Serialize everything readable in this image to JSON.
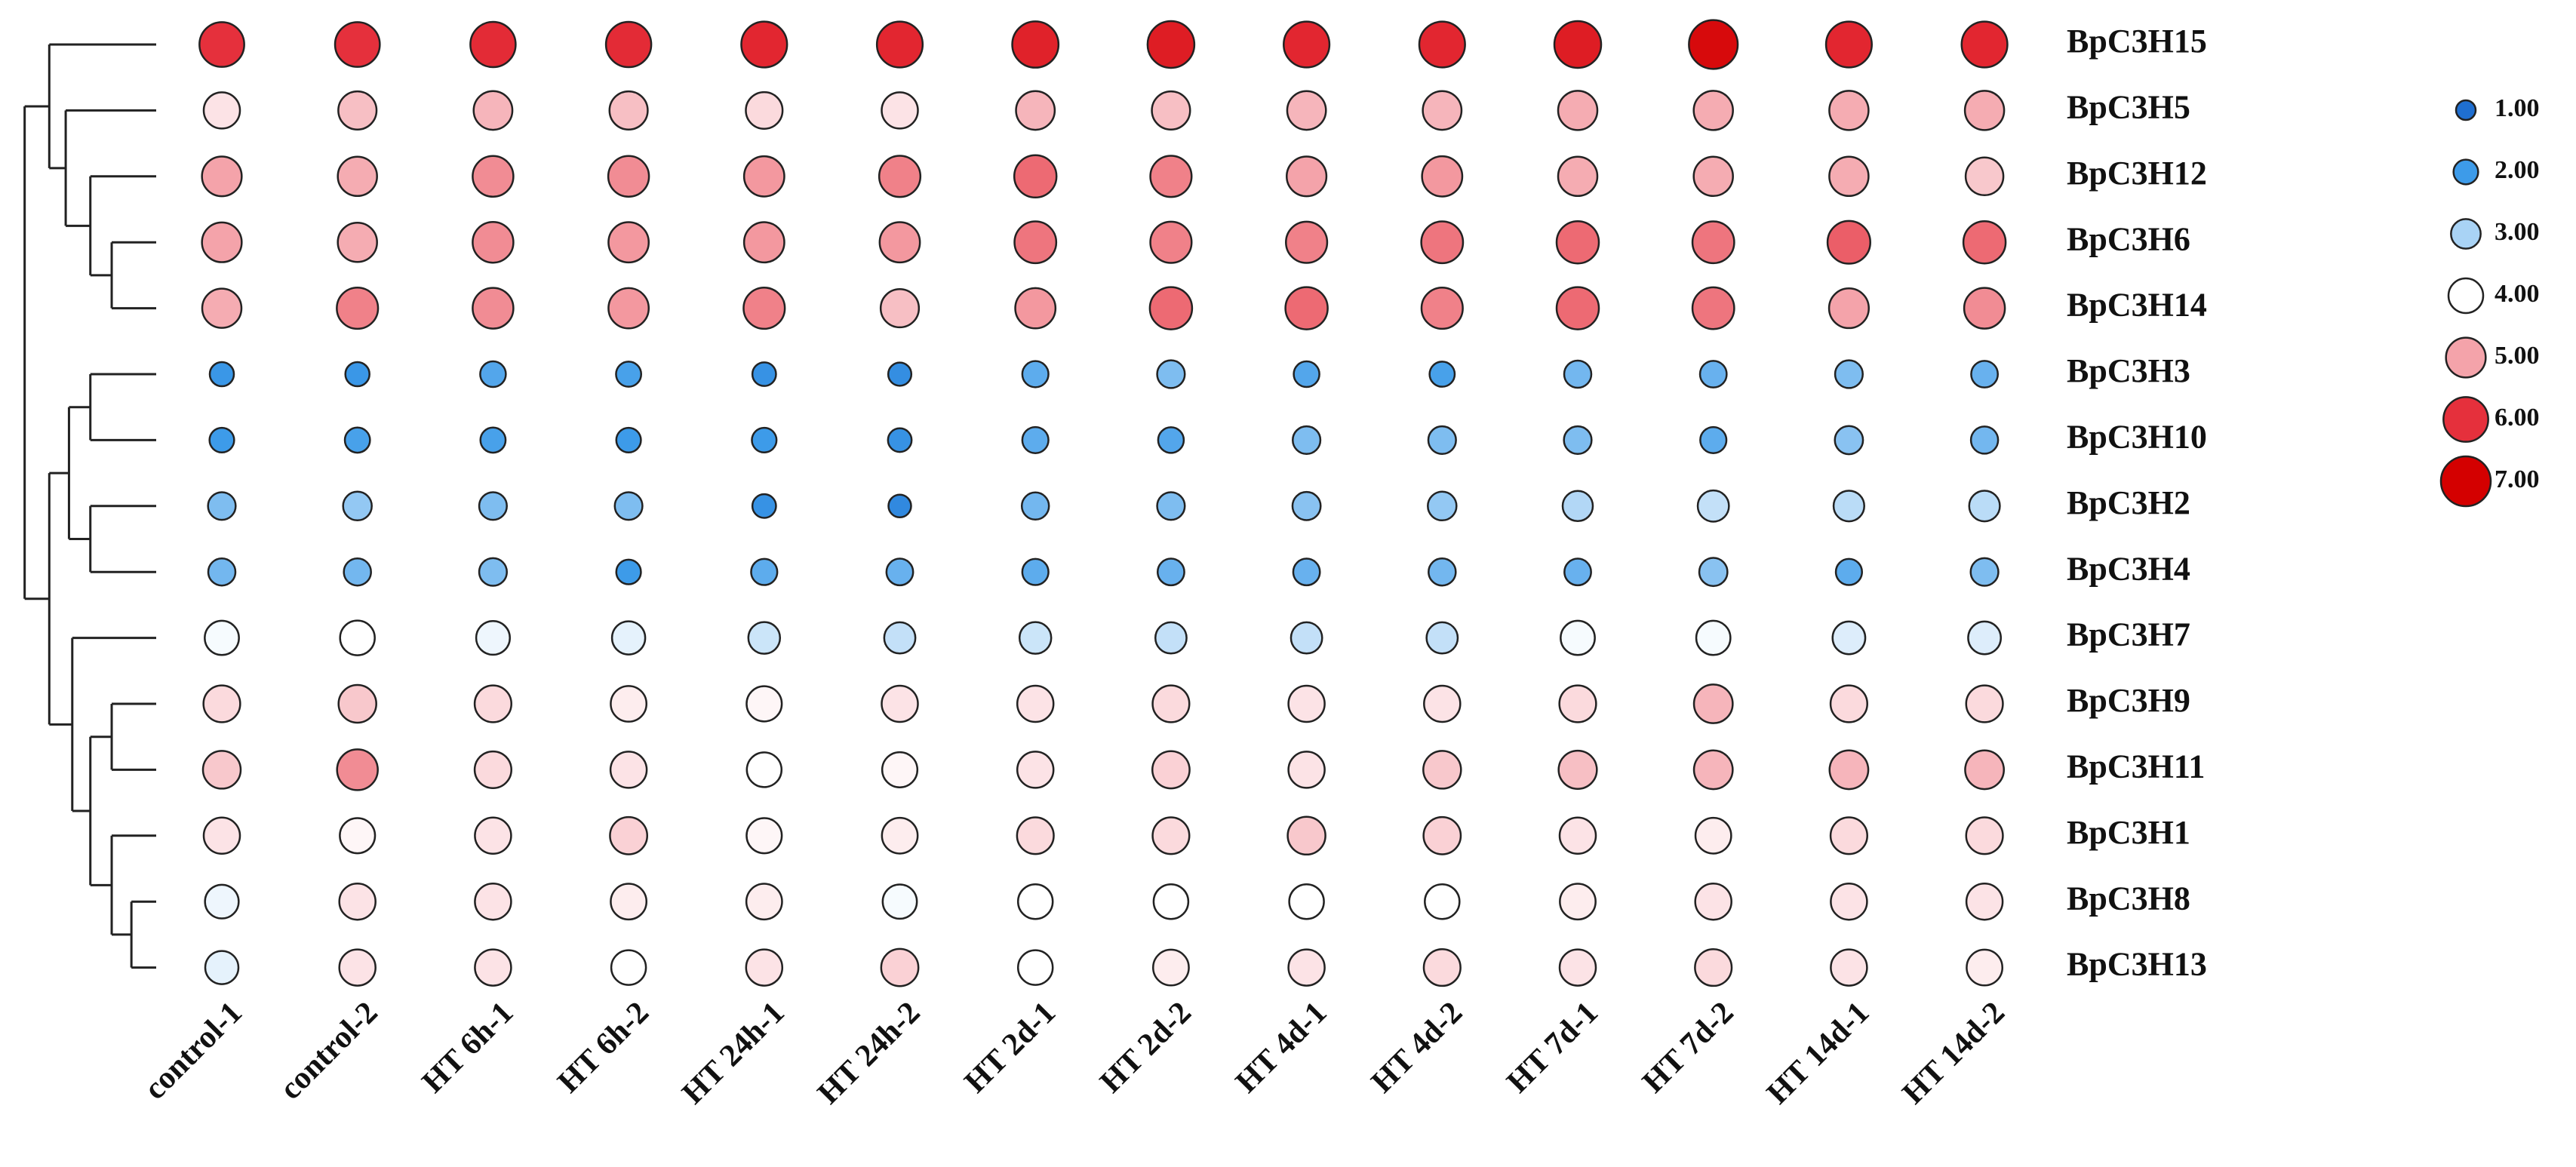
{
  "chart_data": {
    "type": "bubble-heatmap",
    "categories": [
      "control-1",
      "control-2",
      "HT 6h-1",
      "HT 6h-2",
      "HT 24h-1",
      "HT 24h-2",
      "HT 2d-1",
      "HT 2d-2",
      "HT 4d-1",
      "HT 4d-2",
      "HT 7d-1",
      "HT 7d-2",
      "HT 14d-1",
      "HT 14d-2"
    ],
    "series": [
      {
        "name": "BpC3H15",
        "values": [
          6.0,
          6.0,
          6.1,
          6.1,
          6.2,
          6.2,
          6.3,
          6.4,
          6.2,
          6.2,
          6.4,
          6.8,
          6.2,
          6.2
        ]
      },
      {
        "name": "BpC3H5",
        "values": [
          4.3,
          4.7,
          4.8,
          4.7,
          4.4,
          4.3,
          4.8,
          4.7,
          4.8,
          4.8,
          4.9,
          4.9,
          4.9,
          4.9
        ]
      },
      {
        "name": "BpC3H12",
        "values": [
          5.0,
          4.9,
          5.2,
          5.2,
          5.1,
          5.3,
          5.5,
          5.3,
          5.0,
          5.1,
          4.9,
          4.9,
          4.9,
          4.6
        ]
      },
      {
        "name": "BpC3H6",
        "values": [
          5.0,
          4.9,
          5.2,
          5.1,
          5.1,
          5.1,
          5.4,
          5.3,
          5.3,
          5.4,
          5.5,
          5.4,
          5.6,
          5.5
        ]
      },
      {
        "name": "BpC3H14",
        "values": [
          4.9,
          5.3,
          5.2,
          5.1,
          5.3,
          4.7,
          5.1,
          5.5,
          5.5,
          5.3,
          5.5,
          5.4,
          5.0,
          5.2
        ]
      },
      {
        "name": "BpC3H3",
        "values": [
          1.9,
          1.9,
          2.2,
          2.1,
          1.8,
          1.7,
          2.3,
          2.6,
          2.2,
          2.1,
          2.5,
          2.4,
          2.6,
          2.4
        ]
      },
      {
        "name": "BpC3H10",
        "values": [
          2.0,
          2.1,
          2.1,
          2.0,
          2.0,
          1.8,
          2.3,
          2.2,
          2.6,
          2.6,
          2.6,
          2.3,
          2.7,
          2.5
        ]
      },
      {
        "name": "BpC3H2",
        "values": [
          2.6,
          2.8,
          2.6,
          2.6,
          1.8,
          1.6,
          2.5,
          2.6,
          2.7,
          2.8,
          3.1,
          3.3,
          3.2,
          3.2
        ]
      },
      {
        "name": "BpC3H4",
        "values": [
          2.5,
          2.5,
          2.6,
          2.0,
          2.3,
          2.4,
          2.3,
          2.4,
          2.4,
          2.5,
          2.4,
          2.7,
          2.3,
          2.6
        ]
      },
      {
        "name": "BpC3H7",
        "values": [
          3.9,
          4.0,
          3.8,
          3.7,
          3.4,
          3.3,
          3.4,
          3.3,
          3.3,
          3.3,
          3.9,
          3.9,
          3.6,
          3.6
        ]
      },
      {
        "name": "BpC3H9",
        "values": [
          4.4,
          4.6,
          4.4,
          4.2,
          4.1,
          4.3,
          4.3,
          4.4,
          4.3,
          4.3,
          4.4,
          4.8,
          4.4,
          4.4
        ]
      },
      {
        "name": "BpC3H11",
        "values": [
          4.6,
          5.2,
          4.4,
          4.3,
          4.0,
          4.1,
          4.3,
          4.5,
          4.3,
          4.6,
          4.7,
          4.8,
          4.8,
          4.8
        ]
      },
      {
        "name": "BpC3H1",
        "values": [
          4.3,
          4.1,
          4.3,
          4.5,
          4.1,
          4.2,
          4.4,
          4.4,
          4.6,
          4.5,
          4.3,
          4.2,
          4.4,
          4.4
        ]
      },
      {
        "name": "BpC3H8",
        "values": [
          3.8,
          4.3,
          4.3,
          4.2,
          4.2,
          3.9,
          4.0,
          4.0,
          4.0,
          4.0,
          4.2,
          4.3,
          4.3,
          4.3
        ]
      },
      {
        "name": "BpC3H13",
        "values": [
          3.7,
          4.3,
          4.3,
          4.0,
          4.3,
          4.5,
          4.0,
          4.2,
          4.3,
          4.4,
          4.3,
          4.4,
          4.3,
          4.2
        ]
      }
    ],
    "legend": [
      {
        "value": 1,
        "label": "1.00",
        "color": "#1f6fd1"
      },
      {
        "value": 2,
        "label": "2.00",
        "color": "#3d9be9"
      },
      {
        "value": 3,
        "label": "3.00",
        "color": "#a9d3f5"
      },
      {
        "value": 4,
        "label": "4.00",
        "color": "#ffffff"
      },
      {
        "value": 5,
        "label": "5.00",
        "color": "#f4a3aa"
      },
      {
        "value": 6,
        "label": "6.00",
        "color": "#e5303c"
      },
      {
        "value": 7,
        "label": "7.00",
        "color": "#d40000"
      }
    ]
  }
}
